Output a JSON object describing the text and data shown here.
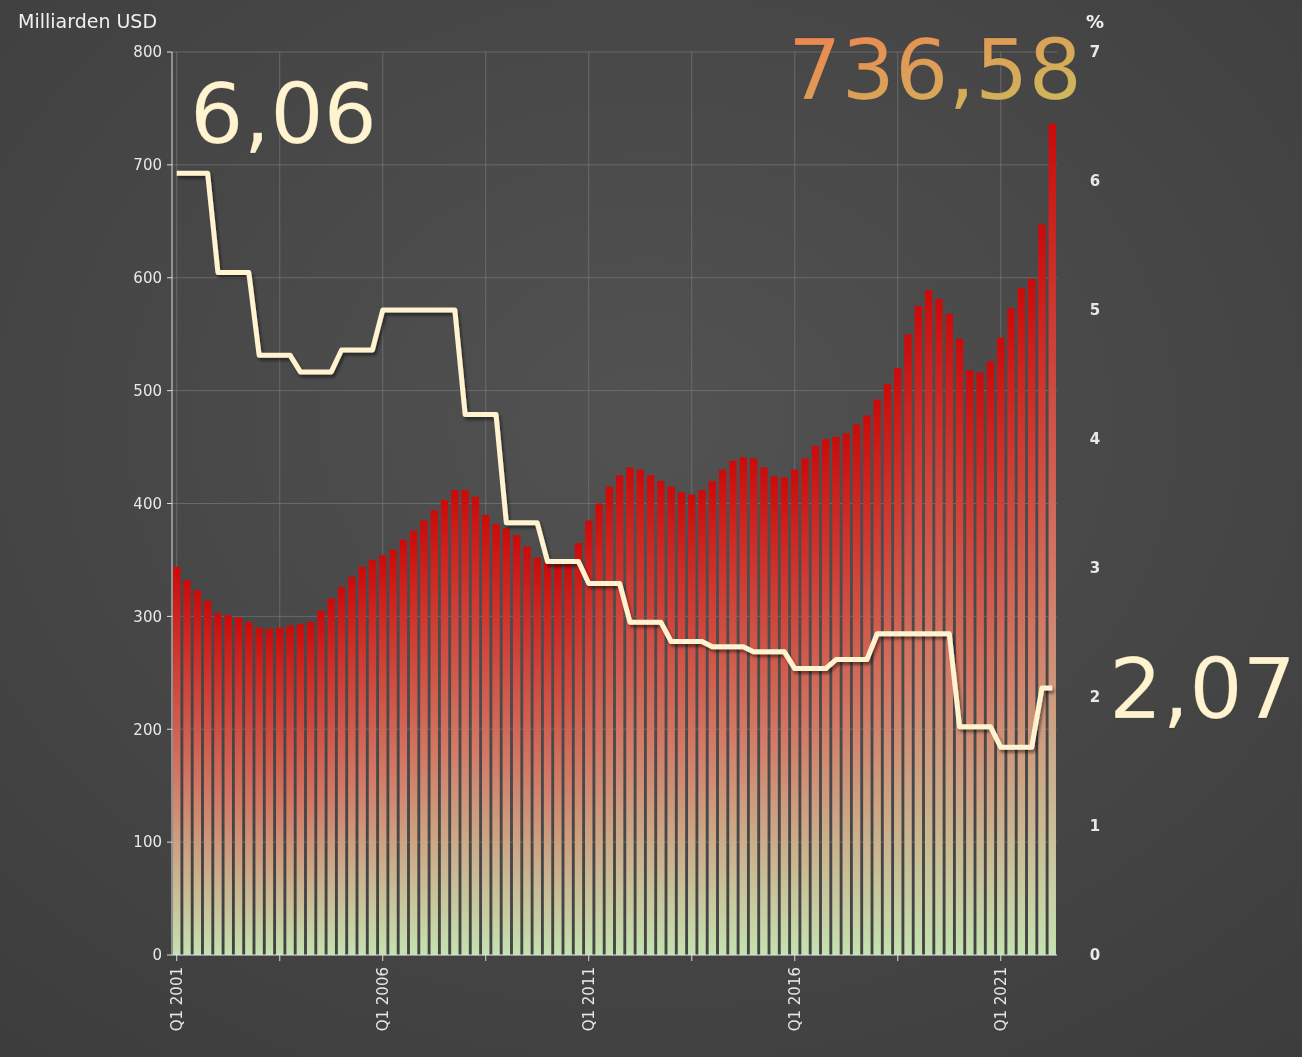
{
  "chart_data": {
    "type": "bar",
    "ylabel": "Milliarden USD",
    "y2label": "%",
    "categories": [
      "Q1 2001",
      null,
      null,
      null,
      null,
      null,
      null,
      null,
      null,
      null,
      null,
      null,
      null,
      null,
      null,
      null,
      null,
      null,
      null,
      null,
      "Q1 2006",
      null,
      null,
      null,
      null,
      null,
      null,
      null,
      null,
      null,
      null,
      null,
      null,
      null,
      null,
      null,
      null,
      null,
      null,
      null,
      "Q1 2011",
      null,
      null,
      null,
      null,
      null,
      null,
      null,
      null,
      null,
      null,
      null,
      null,
      null,
      null,
      null,
      null,
      null,
      null,
      null,
      "Q1 2016",
      null,
      null,
      null,
      null,
      null,
      null,
      null,
      null,
      null,
      null,
      null,
      null,
      null,
      null,
      null,
      null,
      null,
      null,
      null,
      "Q1 2021",
      null,
      null,
      null,
      null,
      null
    ],
    "series": [
      {
        "color": "#cc0a0a",
        "values": [
          344,
          332,
          323,
          314,
          303,
          301,
          299,
          295,
          290,
          289,
          290,
          292,
          293,
          295,
          305,
          316,
          326,
          335,
          344,
          350,
          354,
          359,
          368,
          376,
          385,
          394,
          403,
          412,
          412,
          406,
          390,
          382,
          378,
          372,
          362,
          352,
          348,
          346,
          350,
          365,
          385,
          400,
          415,
          425,
          432,
          430,
          425,
          420,
          415,
          410,
          408,
          412,
          420,
          430,
          438,
          441,
          440,
          432,
          424,
          423,
          430,
          440,
          451,
          457,
          459,
          462,
          470,
          478,
          492,
          506,
          520,
          550,
          575,
          589,
          581,
          568,
          546,
          518,
          516,
          526,
          547,
          573,
          591,
          599,
          647,
          736.58
        ]
      },
      {
        "type": "line",
        "axis": "y2",
        "color": "#fff3d0",
        "values": [
          6.06,
          6.06,
          6.06,
          6.06,
          5.29,
          5.29,
          5.29,
          5.29,
          4.65,
          4.65,
          4.65,
          4.65,
          4.52,
          4.52,
          4.52,
          4.52,
          4.69,
          4.69,
          4.69,
          4.69,
          5.0,
          5.0,
          5.0,
          5.0,
          5.0,
          5.0,
          5.0,
          5.0,
          4.19,
          4.19,
          4.19,
          4.19,
          3.35,
          3.35,
          3.35,
          3.35,
          3.05,
          3.05,
          3.05,
          3.05,
          2.88,
          2.88,
          2.88,
          2.88,
          2.58,
          2.58,
          2.58,
          2.58,
          2.43,
          2.43,
          2.43,
          2.43,
          2.39,
          2.39,
          2.39,
          2.39,
          2.35,
          2.35,
          2.35,
          2.35,
          2.22,
          2.22,
          2.22,
          2.22,
          2.29,
          2.29,
          2.29,
          2.29,
          2.49,
          2.49,
          2.49,
          2.49,
          2.49,
          2.49,
          2.49,
          2.49,
          1.77,
          1.77,
          1.77,
          1.77,
          1.61,
          1.61,
          1.61,
          1.61,
          2.07,
          2.07
        ]
      }
    ],
    "ylim": [
      0,
      800
    ],
    "yticks": [
      0,
      100,
      200,
      300,
      400,
      500,
      600,
      700,
      800
    ],
    "y2lim": [
      0,
      7
    ],
    "y2ticks": [
      0,
      1,
      2,
      3,
      4,
      5,
      6,
      7
    ],
    "grid": true,
    "annotations": [
      "6,06",
      "736,58",
      "2,07"
    ]
  }
}
